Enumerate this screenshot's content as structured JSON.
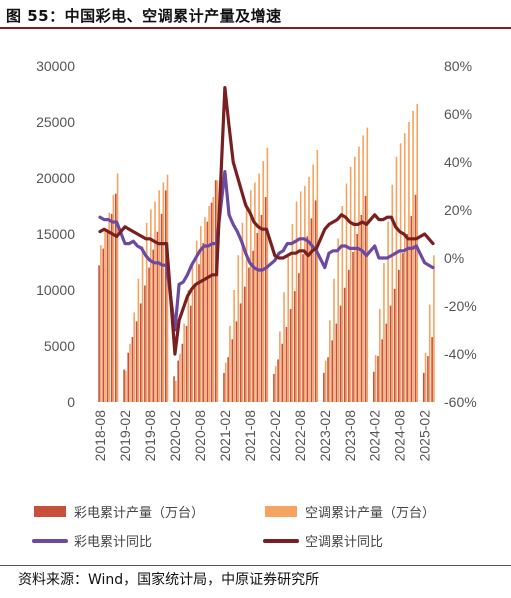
{
  "title": "图 55：中国彩电、空调累计产量及增速",
  "source": "资料来源：Wind，国家统计局，中原证券研究所",
  "chart_data": {
    "type": "bar+line",
    "left_axis": {
      "min": 0,
      "max": 30000,
      "ticks": [
        "0",
        "5000",
        "10000",
        "15000",
        "20000",
        "25000",
        "30000"
      ]
    },
    "right_axis": {
      "min": -60,
      "max": 80,
      "ticks": [
        "-60%",
        "-40%",
        "-20%",
        "0%",
        "20%",
        "40%",
        "60%",
        "80%"
      ]
    },
    "x_tick_labels": [
      "2018-08",
      "2019-02",
      "2019-08",
      "2020-02",
      "2020-08",
      "2021-02",
      "2021-08",
      "2022-02",
      "2022-08",
      "2023-02",
      "2023-08",
      "2024-02",
      "2024-08",
      "2025-02"
    ],
    "months": [
      "2018-08",
      "2018-09",
      "2018-10",
      "2018-11",
      "2018-12",
      "2019-01",
      "2019-02",
      "2019-03",
      "2019-04",
      "2019-05",
      "2019-06",
      "2019-07",
      "2019-08",
      "2019-09",
      "2019-10",
      "2019-11",
      "2019-12",
      "2020-01",
      "2020-02",
      "2020-03",
      "2020-04",
      "2020-05",
      "2020-06",
      "2020-07",
      "2020-08",
      "2020-09",
      "2020-10",
      "2020-11",
      "2020-12",
      "2021-01",
      "2021-02",
      "2021-03",
      "2021-04",
      "2021-05",
      "2021-06",
      "2021-07",
      "2021-08",
      "2021-09",
      "2021-10",
      "2021-11",
      "2021-12",
      "2022-01",
      "2022-02",
      "2022-03",
      "2022-04",
      "2022-05",
      "2022-06",
      "2022-07",
      "2022-08",
      "2022-09",
      "2022-10",
      "2022-11",
      "2022-12",
      "2023-01",
      "2023-02",
      "2023-03",
      "2023-04",
      "2023-05",
      "2023-06",
      "2023-07",
      "2023-08",
      "2023-09",
      "2023-10",
      "2023-11",
      "2023-12",
      "2024-01",
      "2024-02",
      "2024-03",
      "2024-04",
      "2024-05",
      "2024-06",
      "2024-07",
      "2024-08",
      "2024-09",
      "2024-10",
      "2024-11",
      "2024-12",
      "2025-01",
      "2025-02",
      "2025-03",
      "2025-04"
    ],
    "series": [
      {
        "name": "彩电累计产量（万台）",
        "color": "#c8503a",
        "kind": "bar",
        "axis": "left",
        "values": [
          12200,
          13700,
          15300,
          16800,
          18600,
          null,
          2900,
          4400,
          5800,
          7200,
          8800,
          10400,
          12000,
          13600,
          15200,
          16800,
          18900,
          null,
          2300,
          3700,
          5200,
          6800,
          8600,
          10500,
          12300,
          14200,
          16100,
          17800,
          19800,
          null,
          2600,
          4000,
          5600,
          7200,
          8800,
          10300,
          12000,
          13500,
          15100,
          16700,
          18300,
          null,
          2500,
          3800,
          5200,
          6700,
          8300,
          9900,
          11500,
          13200,
          14800,
          16400,
          18000,
          null,
          2600,
          4000,
          5500,
          7000,
          8600,
          10200,
          11800,
          13400,
          15000,
          16700,
          18400,
          null,
          2700,
          4100,
          5600,
          7000,
          8600,
          10100,
          11800,
          13300,
          15000,
          16600,
          18500,
          null,
          2600,
          4100,
          5800
        ]
      },
      {
        "name": "空调累计产量（万台）",
        "color": "#f4a360",
        "kind": "bar",
        "axis": "left",
        "values": [
          14000,
          15300,
          16900,
          18500,
          20400,
          null,
          2800,
          5200,
          8000,
          11000,
          13900,
          16000,
          17200,
          17900,
          18900,
          19600,
          20300,
          null,
          1900,
          4300,
          7000,
          10000,
          12500,
          14400,
          15700,
          16500,
          17500,
          18300,
          19800,
          null,
          3500,
          6800,
          10000,
          13100,
          16000,
          17800,
          18900,
          19600,
          20400,
          21500,
          22700,
          null,
          3200,
          6300,
          9800,
          13100,
          15900,
          17900,
          18800,
          19300,
          20100,
          21200,
          22500,
          null,
          3700,
          7300,
          11000,
          14600,
          17500,
          19500,
          21000,
          21900,
          22800,
          23800,
          24500,
          null,
          4200,
          8300,
          12400,
          16100,
          19400,
          21900,
          23100,
          24000,
          25000,
          26000,
          26600,
          null,
          4400,
          8700,
          13100
        ]
      },
      {
        "name": "彩电累计同比",
        "color": "#6c4aa0",
        "kind": "line",
        "axis": "right",
        "values": [
          17,
          16,
          16,
          15,
          15,
          null,
          6,
          6,
          7,
          5,
          4,
          1,
          -1,
          -2,
          -2,
          -3,
          -3,
          null,
          -30,
          -11,
          -10,
          -7,
          -3,
          0,
          3,
          5,
          5,
          6,
          6,
          null,
          36,
          18,
          14,
          11,
          7,
          2,
          -2,
          -4,
          -5,
          -5,
          -4,
          null,
          -1,
          2,
          3,
          6,
          6,
          7,
          8,
          8,
          7,
          5,
          3,
          null,
          -4,
          2,
          3,
          3,
          5,
          5,
          4,
          4,
          4,
          3,
          1,
          null,
          5,
          0,
          0,
          0,
          1,
          2,
          3,
          3,
          4,
          4,
          5,
          null,
          -2,
          -3,
          -4
        ]
      },
      {
        "name": "空调累计同比",
        "color": "#7a1f1f",
        "kind": "line",
        "axis": "right",
        "values": [
          11,
          12,
          11,
          10,
          9,
          null,
          13,
          12,
          11,
          10,
          9,
          8,
          8,
          7,
          6,
          6,
          6,
          null,
          -40,
          -26,
          -21,
          -16,
          -13,
          -11,
          -10,
          -9,
          -8,
          -7,
          -7,
          null,
          71,
          55,
          40,
          34,
          28,
          22,
          19,
          15,
          13,
          12,
          12,
          null,
          1,
          0,
          0,
          1,
          2,
          2,
          3,
          3,
          1,
          3,
          4,
          null,
          12,
          14,
          15,
          16,
          18,
          17,
          15,
          14,
          14,
          15,
          14,
          null,
          18,
          16,
          16,
          17,
          17,
          13,
          11,
          10,
          8,
          8,
          8,
          null,
          10,
          8,
          6
        ]
      }
    ],
    "legend": [
      {
        "label": "彩电累计产量（万台）",
        "type": "bar",
        "color": "#c8503a"
      },
      {
        "label": "空调累计产量（万台）",
        "type": "bar",
        "color": "#f4a360"
      },
      {
        "label": "彩电累计同比",
        "type": "line",
        "color": "#6c4aa0"
      },
      {
        "label": "空调累计同比",
        "type": "line",
        "color": "#7a1f1f"
      }
    ],
    "legend_position": "bottom",
    "grid": false
  }
}
